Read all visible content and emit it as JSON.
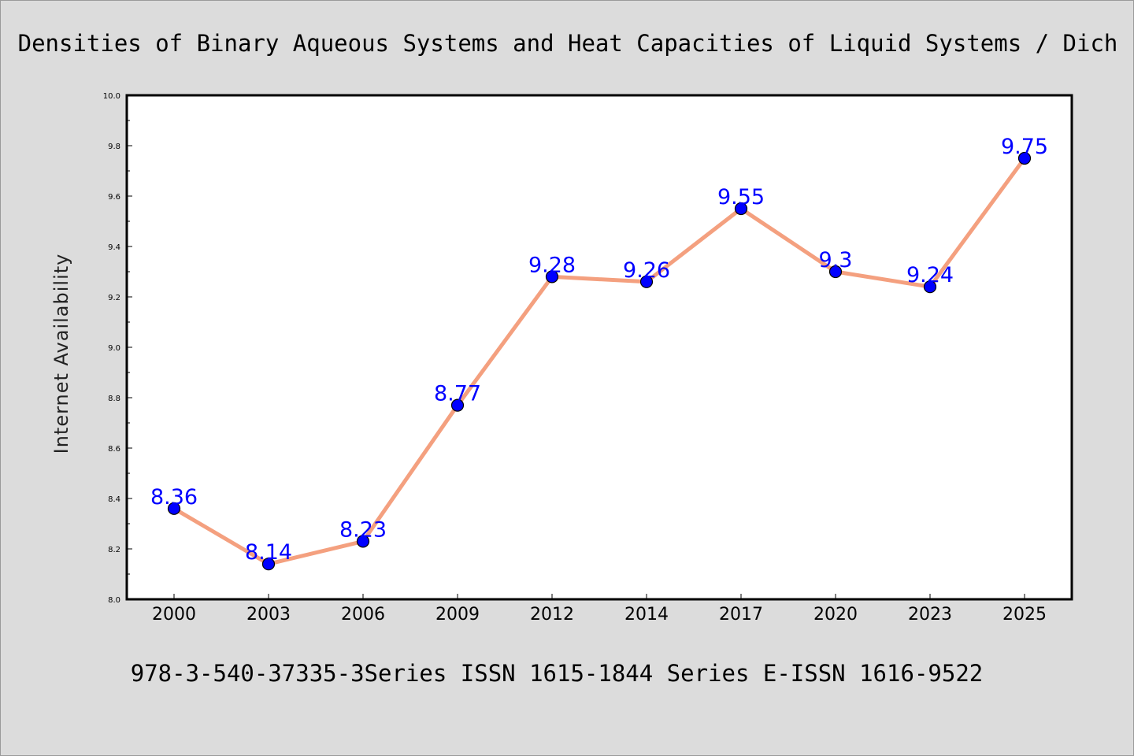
{
  "chart_data": {
    "type": "line",
    "title": "Densities of Binary Aqueous Systems and Heat Capacities of Liquid Systems / Dich",
    "xlabel": "",
    "ylabel": "Internet Availability",
    "footer": "978-3-540-37335-3Series ISSN 1615-1844 Series E-ISSN 1616-9522",
    "categories": [
      "2000",
      "2003",
      "2006",
      "2009",
      "2012",
      "2014",
      "2017",
      "2020",
      "2023",
      "2025"
    ],
    "series": [
      {
        "values": [
          8.36,
          8.14,
          8.23,
          8.77,
          9.28,
          9.26,
          9.55,
          9.3,
          9.24,
          9.75
        ]
      }
    ],
    "data_labels": [
      "8.36",
      "8.14",
      "8.23",
      "8.77",
      "9.28",
      "9.26",
      "9.55",
      "9.3",
      "9.24",
      "9.75"
    ],
    "ylim": [
      8.0,
      10.0
    ],
    "yticks": [
      "8.0",
      "8.2",
      "8.4",
      "8.6",
      "8.8",
      "9.0",
      "9.2",
      "9.4",
      "9.6",
      "9.8",
      "10.0"
    ],
    "grid": false,
    "legend": "none",
    "colors": {
      "background": "#dcdcdc",
      "plot_area": "#ffffff",
      "line": "#f4a07f",
      "marker": "#0000ff",
      "data_label": "#0000ff"
    }
  }
}
